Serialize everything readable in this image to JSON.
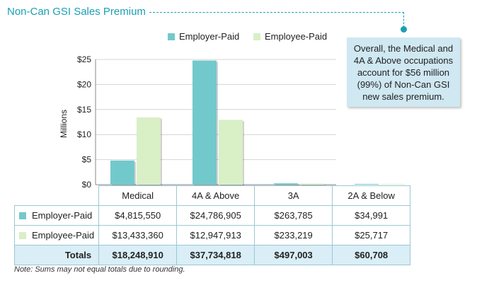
{
  "title": "Non-Can GSI Sales Premium",
  "callout": "Overall, the Medical and 4A & Above occupations account for $56 million (99%) of Non-Can GSI new sales premium.",
  "note": "Note: Sums may not equal totals due to rounding.",
  "colors": {
    "employer": "#72c9cb",
    "employee": "#d9efc6",
    "accent": "#1aa0b3"
  },
  "table": {
    "totals_label": "Totals",
    "totals": [
      "$18,248,910",
      "$37,734,818",
      "$497,003",
      "$60,708"
    ],
    "rows": [
      {
        "label": "Employer-Paid",
        "values": [
          "$4,815,550",
          "$24,786,905",
          "$263,785",
          "$34,991"
        ]
      },
      {
        "label": "Employee-Paid",
        "values": [
          "$13,433,360",
          "$12,947,913",
          "$233,219",
          "$25,717"
        ]
      }
    ]
  },
  "chart_data": {
    "type": "bar",
    "ylabel": "Millions",
    "ylim": [
      0,
      25
    ],
    "yticks": [
      "$0",
      "$5",
      "$10",
      "$15",
      "$20",
      "$25"
    ],
    "legend_position": "top",
    "categories": [
      "Medical",
      "4A & Above",
      "3A",
      "2A & Below"
    ],
    "series": [
      {
        "name": "Employer-Paid",
        "values": [
          4.81555,
          24.786905,
          0.263785,
          0.034991
        ]
      },
      {
        "name": "Employee-Paid",
        "values": [
          13.43336,
          12.947913,
          0.233219,
          0.025717
        ]
      }
    ]
  }
}
